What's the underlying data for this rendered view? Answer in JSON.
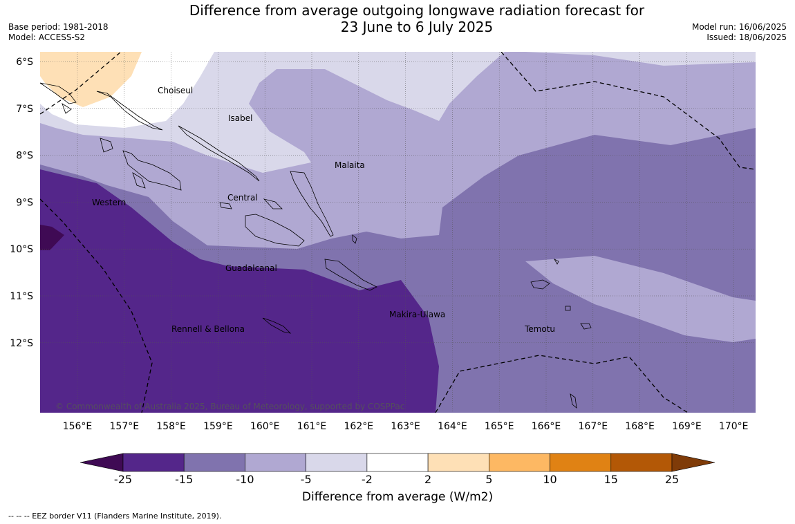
{
  "header": {
    "title_line1": "Difference from average outgoing longwave radiation forecast for",
    "title_line2": "23 June to 6 July 2025",
    "base_period": "Base period: 1981-2018",
    "model": "Model: ACCESS-S2",
    "model_run": "Model run: 16/06/2025",
    "issued": "Issued: 18/06/2025"
  },
  "map": {
    "lat_labels": [
      "6°S",
      "7°S",
      "8°S",
      "9°S",
      "10°S",
      "11°S",
      "12°S"
    ],
    "lon_labels": [
      "156°E",
      "157°E",
      "158°E",
      "159°E",
      "160°E",
      "161°E",
      "162°E",
      "163°E",
      "164°E",
      "165°E",
      "166°E",
      "167°E",
      "168°E",
      "169°E",
      "170°E"
    ],
    "regions": [
      {
        "name": "Choiseul"
      },
      {
        "name": "Isabel"
      },
      {
        "name": "Malaita"
      },
      {
        "name": "Central"
      },
      {
        "name": "Western"
      },
      {
        "name": "Guadalcanal"
      },
      {
        "name": "Makira-Ulawa"
      },
      {
        "name": "Rennell & Bellona"
      },
      {
        "name": "Temotu"
      }
    ],
    "copyright": "© Commonwealth of Australia 2025, Bureau of Meteorology, supported by COSPPac"
  },
  "colorbar": {
    "title": "Difference from average (W/m2)",
    "tick_labels": [
      "-25",
      "-15",
      "-10",
      "-5",
      "-2",
      "2",
      "5",
      "10",
      "15",
      "25"
    ],
    "colors": [
      "#3f0a54",
      "#54268a",
      "#8073ae",
      "#b0a8d2",
      "#d9d8ea",
      "#ffffff",
      "#fee0b6",
      "#fdb863",
      "#e08214",
      "#b35806",
      "#7f3b08"
    ]
  },
  "footnote": "--  --  -- EEZ border V11 (Flanders Marine Institute, 2019)."
}
